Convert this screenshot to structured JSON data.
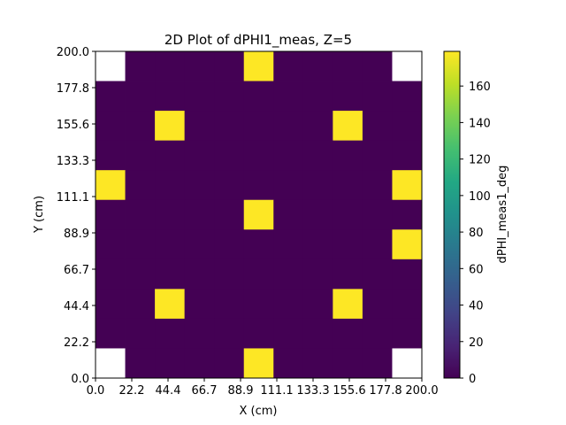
{
  "chart_data": {
    "type": "heatmap",
    "title": "2D Plot of dPHI1_meas, Z=5",
    "xlabel": "X (cm)",
    "ylabel": "Y (cm)",
    "colorbar_label": "dPHI_meas1_deg",
    "colormap": "viridis",
    "xlim": [
      0,
      200
    ],
    "ylim": [
      0,
      200
    ],
    "clim": [
      0,
      179
    ],
    "x_ticks": [
      "0.0",
      "22.2",
      "44.4",
      "66.7",
      "88.9",
      "111.1",
      "133.3",
      "155.6",
      "177.8",
      "200.0"
    ],
    "y_ticks": [
      "0.0",
      "22.2",
      "44.4",
      "66.7",
      "88.9",
      "111.1",
      "133.3",
      "155.6",
      "177.8",
      "200.0"
    ],
    "colorbar_ticks": [
      "0",
      "20",
      "40",
      "60",
      "80",
      "100",
      "120",
      "140",
      "160"
    ],
    "grid_size": [
      11,
      11
    ],
    "cells_row_order": "top-to-bottom (Y=200 down to Y=0), each row left-to-right (X=0 to X=200); null = no data",
    "values": [
      [
        null,
        0,
        0,
        0,
        0,
        179,
        0,
        0,
        0,
        0,
        null
      ],
      [
        0,
        0,
        0,
        0,
        0,
        0,
        0,
        0,
        0,
        0,
        0
      ],
      [
        0,
        0,
        179,
        0,
        0,
        0,
        0,
        0,
        179,
        0,
        0
      ],
      [
        0,
        0,
        0,
        0,
        0,
        0,
        0,
        0,
        0,
        0,
        0
      ],
      [
        179,
        0,
        0,
        0,
        0,
        0,
        0,
        0,
        0,
        0,
        179
      ],
      [
        0,
        0,
        0,
        0,
        0,
        179,
        0,
        0,
        0,
        0,
        0
      ],
      [
        0,
        0,
        0,
        0,
        0,
        0,
        0,
        0,
        0,
        0,
        179
      ],
      [
        0,
        0,
        0,
        0,
        0,
        0,
        0,
        0,
        0,
        0,
        0
      ],
      [
        0,
        0,
        179,
        0,
        0,
        0,
        0,
        0,
        179,
        0,
        0
      ],
      [
        0,
        0,
        0,
        0,
        0,
        0,
        0,
        0,
        0,
        0,
        0
      ],
      [
        null,
        0,
        0,
        0,
        0,
        179,
        0,
        0,
        0,
        0,
        null
      ]
    ],
    "colors": {
      "low": "#440154",
      "high": "#fde725",
      "missing": "#ffffff"
    }
  }
}
